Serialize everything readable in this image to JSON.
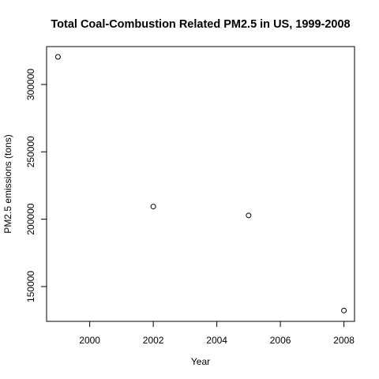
{
  "chart_data": {
    "type": "scatter",
    "title": "Total Coal-Combustion Related PM2.5 in US, 1999-2008",
    "xlabel": "Year",
    "ylabel": "PM2.5 emissions (tons)",
    "x": [
      1999,
      2002,
      2005,
      2008
    ],
    "y": [
      320500,
      209400,
      202800,
      132200
    ],
    "xlim": [
      1999,
      2008
    ],
    "ylim": [
      132200,
      320500
    ],
    "xticks": [
      2000,
      2002,
      2004,
      2006,
      2008
    ],
    "yticks": [
      150000,
      200000,
      250000,
      300000
    ],
    "xtick_labels": [
      "2000",
      "2002",
      "2004",
      "2006",
      "2008"
    ],
    "ytick_labels": [
      "150000",
      "200000",
      "250000",
      "300000"
    ],
    "grid": false,
    "marker": "open-circle"
  }
}
